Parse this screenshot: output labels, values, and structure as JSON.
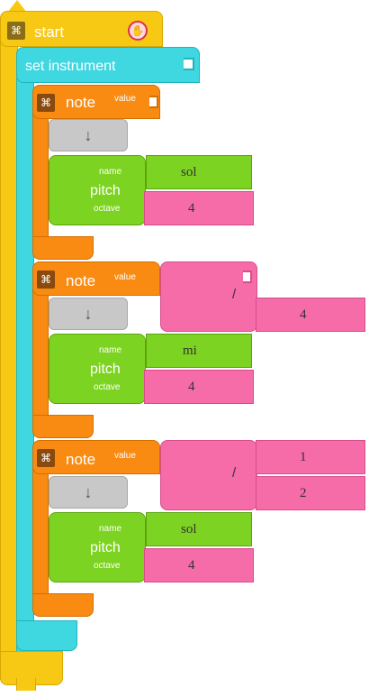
{
  "start": {
    "label": "start"
  },
  "instrument": {
    "label": "set instrument"
  },
  "notes": [
    {
      "label": "note",
      "value_label": "value",
      "gray_symbol": "↓",
      "pitch": {
        "label": "pitch",
        "name_label": "name",
        "octave_label": "octave",
        "name": "sol",
        "octave": "4"
      }
    },
    {
      "label": "note",
      "value_label": "value",
      "division": {
        "operator": "/",
        "denominator": "4"
      },
      "gray_symbol": "↓",
      "pitch": {
        "label": "pitch",
        "name_label": "name",
        "octave_label": "octave",
        "name": "mi",
        "octave": "4"
      }
    },
    {
      "label": "note",
      "value_label": "value",
      "division": {
        "operator": "/",
        "numerator": "1",
        "denominator": "2"
      },
      "gray_symbol": "↓",
      "pitch": {
        "label": "pitch",
        "name_label": "name",
        "octave_label": "octave",
        "name": "sol",
        "octave": "4"
      }
    }
  ],
  "icons": {
    "collapse": "collapse-icon",
    "hand": "hand-icon"
  }
}
